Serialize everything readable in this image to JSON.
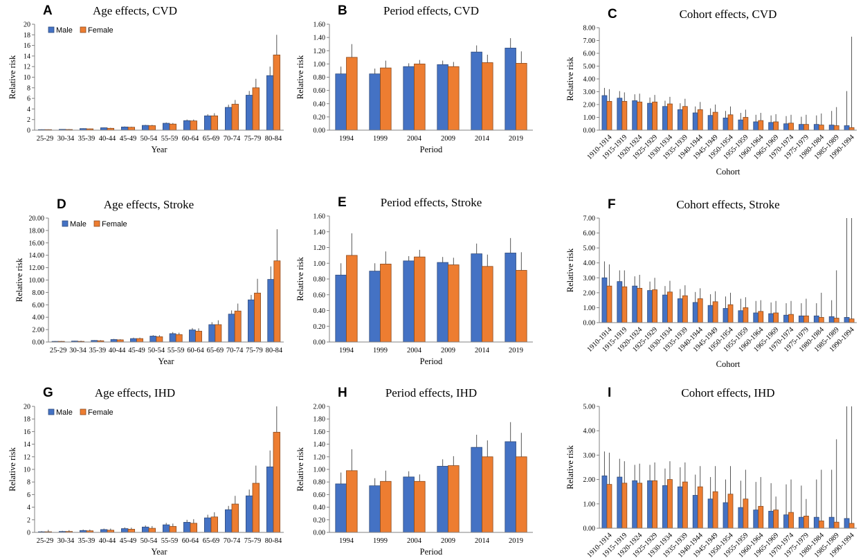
{
  "colors": {
    "male": "#4472C4",
    "female": "#ED7D31",
    "male_edge": "#2F4B7C",
    "female_edge": "#8A4A1E",
    "axis": "#808080",
    "error": "#555555"
  },
  "legend": {
    "male": "Male",
    "female": "Female"
  },
  "chart_data": [
    {
      "id": "A",
      "letter": "A",
      "type": "bar",
      "title": "Age effects, CVD",
      "xlabel": "Year",
      "ylabel": "Relative risk",
      "ylim": [
        0,
        20
      ],
      "yticks": [
        "0",
        "2",
        "4",
        "6",
        "8",
        "10",
        "12",
        "14",
        "16",
        "18",
        "20"
      ],
      "legend": true,
      "rotate_x": false,
      "categories": [
        "25-29",
        "30-34",
        "35-39",
        "40-44",
        "45-49",
        "50-54",
        "55-59",
        "60-64",
        "65-69",
        "70-74",
        "75-79",
        "80-84"
      ],
      "series": [
        {
          "name": "Male",
          "values": [
            0.1,
            0.15,
            0.3,
            0.45,
            0.6,
            0.9,
            1.3,
            1.8,
            2.7,
            4.3,
            6.6,
            10.3
          ],
          "err_upper": [
            0.15,
            0.2,
            0.35,
            0.5,
            0.7,
            1.0,
            1.45,
            2.0,
            3.0,
            4.8,
            7.4,
            12.0
          ]
        },
        {
          "name": "Female",
          "values": [
            0.1,
            0.12,
            0.25,
            0.35,
            0.55,
            0.85,
            1.15,
            1.75,
            2.7,
            4.9,
            8.0,
            14.2
          ],
          "err_upper": [
            0.15,
            0.2,
            0.3,
            0.45,
            0.65,
            1.0,
            1.35,
            2.0,
            3.2,
            5.7,
            9.7,
            18.0
          ]
        }
      ]
    },
    {
      "id": "B",
      "letter": "B",
      "type": "bar",
      "title": "Period effects, CVD",
      "xlabel": "Period",
      "ylabel": "Relative risk",
      "ylim": [
        0,
        1.6
      ],
      "yticks": [
        "0.00",
        "0.20",
        "0.40",
        "0.60",
        "0.80",
        "1.00",
        "1.20",
        "1.40",
        "1.60"
      ],
      "legend": false,
      "rotate_x": false,
      "categories": [
        "1994",
        "1999",
        "2004",
        "2009",
        "2014",
        "2019"
      ],
      "series": [
        {
          "name": "Male",
          "values": [
            0.85,
            0.85,
            0.96,
            0.99,
            1.18,
            1.24
          ],
          "err_upper": [
            0.96,
            0.93,
            1.01,
            1.05,
            1.28,
            1.39
          ]
        },
        {
          "name": "Female",
          "values": [
            1.1,
            0.94,
            1.0,
            0.96,
            1.02,
            1.01
          ],
          "err_upper": [
            1.3,
            1.05,
            1.06,
            1.03,
            1.14,
            1.19
          ]
        }
      ]
    },
    {
      "id": "C",
      "letter": "C",
      "type": "bar",
      "title": "Cohort effects, CVD",
      "xlabel": "Cohort",
      "ylabel": "Relative risk",
      "ylim": [
        0,
        8
      ],
      "yticks": [
        "0.00",
        "1.00",
        "2.00",
        "3.00",
        "4.00",
        "5.00",
        "6.00",
        "7.00",
        "8.00"
      ],
      "legend": false,
      "rotate_x": true,
      "categories": [
        "1910-1914",
        "1915-1919",
        "1920-1924",
        "1925-1929",
        "1930-1934",
        "1935-1939",
        "1940-1944",
        "1945-1949",
        "1950-1954",
        "1955-1959",
        "1960-1964",
        "1965-1969",
        "1970-1974",
        "1975-1979",
        "1980-1984",
        "1985-1989",
        "1990-1994"
      ],
      "series": [
        {
          "name": "Male",
          "values": [
            2.7,
            2.5,
            2.3,
            2.1,
            1.85,
            1.6,
            1.35,
            1.15,
            0.95,
            0.8,
            0.65,
            0.6,
            0.5,
            0.45,
            0.45,
            0.4,
            0.35
          ],
          "err_upper": [
            3.3,
            3.05,
            2.8,
            2.55,
            2.3,
            2.1,
            1.85,
            1.7,
            1.5,
            1.35,
            1.2,
            1.15,
            1.1,
            1.05,
            1.15,
            1.5,
            3.05
          ]
        },
        {
          "name": "Female",
          "values": [
            2.25,
            2.25,
            2.2,
            2.2,
            2.05,
            1.85,
            1.6,
            1.4,
            1.2,
            1.0,
            0.75,
            0.65,
            0.55,
            0.45,
            0.4,
            0.35,
            0.2
          ],
          "err_upper": [
            3.2,
            2.95,
            2.85,
            2.75,
            2.6,
            2.45,
            2.2,
            2.0,
            1.85,
            1.6,
            1.35,
            1.25,
            1.2,
            1.2,
            1.3,
            1.8,
            7.3
          ]
        }
      ]
    },
    {
      "id": "D",
      "letter": "D",
      "type": "bar",
      "title": "Age effects, Stroke",
      "xlabel": "Year",
      "ylabel": "Relative risk",
      "ylim": [
        0,
        20
      ],
      "yticks": [
        "0.00",
        "2.00",
        "4.00",
        "6.00",
        "8.00",
        "10.00",
        "12.00",
        "14.00",
        "16.00",
        "18.00",
        "20.00"
      ],
      "legend": true,
      "rotate_x": false,
      "categories": [
        "25-29",
        "30-34",
        "35-39",
        "40-44",
        "45-49",
        "50-54",
        "55-59",
        "60-64",
        "65-69",
        "70-74",
        "75-79",
        "80-84"
      ],
      "series": [
        {
          "name": "Male",
          "values": [
            0.1,
            0.15,
            0.25,
            0.4,
            0.55,
            0.95,
            1.35,
            1.95,
            2.8,
            4.5,
            6.8,
            10.1
          ],
          "err_upper": [
            0.15,
            0.2,
            0.3,
            0.5,
            0.7,
            1.1,
            1.6,
            2.25,
            3.2,
            5.1,
            7.6,
            12.2
          ]
        },
        {
          "name": "Female",
          "values": [
            0.1,
            0.1,
            0.2,
            0.35,
            0.55,
            0.85,
            1.2,
            1.75,
            2.8,
            5.0,
            7.9,
            13.1
          ],
          "err_upper": [
            0.15,
            0.2,
            0.3,
            0.45,
            0.7,
            1.1,
            1.5,
            2.2,
            3.5,
            6.2,
            10.2,
            18.2
          ]
        }
      ]
    },
    {
      "id": "E",
      "letter": "E",
      "type": "bar",
      "title": "Period effects, Stroke",
      "xlabel": "Period",
      "ylabel": "Relative risk",
      "ylim": [
        0,
        1.6
      ],
      "yticks": [
        "0.00",
        "0.20",
        "0.40",
        "0.60",
        "0.80",
        "1.00",
        "1.20",
        "1.40",
        "1.60"
      ],
      "legend": false,
      "rotate_x": false,
      "categories": [
        "1994",
        "1999",
        "2004",
        "2009",
        "2014",
        "2019"
      ],
      "series": [
        {
          "name": "Male",
          "values": [
            0.85,
            0.9,
            1.03,
            1.01,
            1.12,
            1.13
          ],
          "err_upper": [
            1.0,
            1.0,
            1.09,
            1.08,
            1.25,
            1.32
          ]
        },
        {
          "name": "Female",
          "values": [
            1.1,
            0.99,
            1.08,
            0.98,
            0.96,
            0.91
          ],
          "err_upper": [
            1.38,
            1.15,
            1.17,
            1.07,
            1.11,
            1.14
          ]
        }
      ]
    },
    {
      "id": "F",
      "letter": "F",
      "type": "bar",
      "title": "Cohort effects, Stroke",
      "xlabel": "Cohort",
      "ylabel": "Relative risk",
      "ylim": [
        0,
        7
      ],
      "yticks": [
        "0.00",
        "1.00",
        "2.00",
        "3.00",
        "4.00",
        "5.00",
        "6.00",
        "7.00"
      ],
      "legend": false,
      "rotate_x": true,
      "categories": [
        "1910-1914",
        "1915-1919",
        "1920-1924",
        "1925-1929",
        "1930-1934",
        "1935-1939",
        "1940-1944",
        "1945-1949",
        "1950-1954",
        "1955-1959",
        "1960-1964",
        "1965-1969",
        "1970-1974",
        "1975-1979",
        "1980-1984",
        "1985-1989",
        "1990-1994"
      ],
      "series": [
        {
          "name": "Male",
          "values": [
            3.0,
            2.75,
            2.45,
            2.15,
            1.85,
            1.6,
            1.35,
            1.15,
            0.95,
            0.8,
            0.65,
            0.6,
            0.5,
            0.45,
            0.45,
            0.4,
            0.35
          ],
          "err_upper": [
            4.1,
            3.5,
            3.1,
            2.75,
            2.45,
            2.25,
            2.05,
            1.9,
            1.75,
            1.6,
            1.45,
            1.35,
            1.3,
            1.3,
            1.3,
            1.5,
            7.0
          ]
        },
        {
          "name": "Female",
          "values": [
            2.45,
            2.4,
            2.3,
            2.2,
            2.05,
            1.8,
            1.6,
            1.4,
            1.2,
            1.0,
            0.75,
            0.65,
            0.55,
            0.45,
            0.35,
            0.3,
            0.25
          ],
          "err_upper": [
            3.9,
            3.5,
            3.2,
            3.0,
            2.8,
            2.5,
            2.3,
            2.1,
            2.0,
            1.7,
            1.5,
            1.45,
            1.45,
            1.6,
            2.0,
            3.5,
            7.0
          ]
        }
      ]
    },
    {
      "id": "G",
      "letter": "G",
      "type": "bar",
      "title": "Age effects, IHD",
      "xlabel": "Year",
      "ylabel": "Relative risk",
      "ylim": [
        0,
        20
      ],
      "yticks": [
        "0",
        "2",
        "4",
        "6",
        "8",
        "10",
        "12",
        "14",
        "16",
        "18",
        "20"
      ],
      "legend": true,
      "rotate_x": false,
      "categories": [
        "25-29",
        "30-34",
        "35-39",
        "40-44",
        "45-49",
        "50-54",
        "55-59",
        "60-64",
        "65-69",
        "70-74",
        "75-79",
        "80-84"
      ],
      "series": [
        {
          "name": "Male",
          "values": [
            0.1,
            0.15,
            0.3,
            0.45,
            0.6,
            0.85,
            1.2,
            1.6,
            2.3,
            3.6,
            5.8,
            10.4
          ],
          "err_upper": [
            0.2,
            0.25,
            0.45,
            0.6,
            0.8,
            1.1,
            1.5,
            2.0,
            2.8,
            4.2,
            6.8,
            13.0
          ]
        },
        {
          "name": "Female",
          "values": [
            0.1,
            0.15,
            0.25,
            0.35,
            0.5,
            0.65,
            0.95,
            1.45,
            2.45,
            4.5,
            7.8,
            15.9
          ],
          "err_upper": [
            0.4,
            0.35,
            0.45,
            0.6,
            0.75,
            1.0,
            1.4,
            2.1,
            3.2,
            5.8,
            10.6,
            20.0
          ]
        }
      ]
    },
    {
      "id": "H",
      "letter": "H",
      "type": "bar",
      "title": "Period effects, IHD",
      "xlabel": "Period",
      "ylabel": "Relative risk",
      "ylim": [
        0,
        2
      ],
      "yticks": [
        "0.00",
        "0.20",
        "0.40",
        "0.60",
        "0.80",
        "1.00",
        "1.20",
        "1.40",
        "1.60",
        "1.80",
        "2.00"
      ],
      "legend": false,
      "rotate_x": false,
      "categories": [
        "1994",
        "1999",
        "2004",
        "2009",
        "2014",
        "2019"
      ],
      "series": [
        {
          "name": "Male",
          "values": [
            0.77,
            0.74,
            0.88,
            1.05,
            1.35,
            1.44
          ],
          "err_upper": [
            0.95,
            0.86,
            0.97,
            1.16,
            1.55,
            1.75
          ]
        },
        {
          "name": "Female",
          "values": [
            0.98,
            0.81,
            0.81,
            1.06,
            1.2,
            1.2
          ],
          "err_upper": [
            1.32,
            0.98,
            0.92,
            1.21,
            1.46,
            1.58
          ]
        }
      ]
    },
    {
      "id": "I",
      "letter": "I",
      "type": "bar",
      "title": "Cohort effects, IHD",
      "xlabel": "Cohort",
      "ylabel": "Relative risk",
      "ylim": [
        0,
        5
      ],
      "yticks": [
        "0.00",
        "1.00",
        "2.00",
        "3.00",
        "4.00",
        "5.00"
      ],
      "legend": false,
      "rotate_x": true,
      "categories": [
        "1910-1914",
        "1915-1919",
        "1920-1924",
        "1925-1929",
        "1930-1934",
        "1935-1939",
        "1940-1944",
        "1945-1949",
        "1950-1954",
        "1955-1959",
        "1960-1964",
        "1965-1969",
        "1970-1974",
        "1975-1979",
        "1980-1984",
        "1985-1989",
        "1990-1994"
      ],
      "series": [
        {
          "name": "Male",
          "values": [
            2.15,
            2.1,
            1.95,
            1.95,
            1.75,
            1.7,
            1.35,
            1.2,
            1.05,
            0.85,
            0.75,
            0.7,
            0.55,
            0.45,
            0.45,
            0.45,
            0.4
          ],
          "err_upper": [
            3.15,
            2.85,
            2.6,
            2.6,
            2.45,
            2.5,
            2.2,
            2.1,
            2.0,
            1.95,
            1.9,
            1.85,
            1.8,
            1.75,
            2.0,
            2.4,
            5.0
          ]
        },
        {
          "name": "Female",
          "values": [
            1.8,
            1.85,
            1.85,
            1.95,
            2.0,
            1.9,
            1.7,
            1.5,
            1.4,
            1.2,
            0.9,
            0.75,
            0.65,
            0.5,
            0.3,
            0.25,
            0.2
          ],
          "err_upper": [
            3.1,
            2.75,
            2.65,
            2.7,
            2.75,
            2.7,
            2.55,
            2.55,
            2.55,
            2.4,
            2.1,
            1.3,
            2.0,
            1.2,
            2.4,
            3.65,
            5.0
          ]
        }
      ]
    }
  ]
}
